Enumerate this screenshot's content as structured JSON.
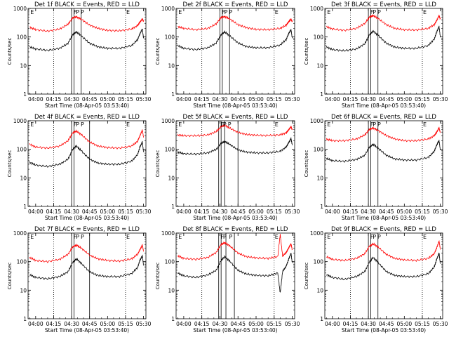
{
  "figure": {
    "background": "#ffffff",
    "colors": {
      "events": "#000000",
      "lld": "#ff0000",
      "axes": "#000000"
    },
    "ylabel": "Counts/sec",
    "xlabel": "Start Time (08-Apr-05 03:53:40)",
    "y_ticks": [
      "1",
      "10",
      "100",
      "1000"
    ],
    "x_ticks": [
      "04:00",
      "04:15",
      "04:30",
      "04:45",
      "05:00",
      "05:15",
      "05:30"
    ]
  },
  "chart_data": [
    {
      "type": "line",
      "title": "Det 1f BLACK = Events, RED = LLD",
      "xlabel": "Start Time (08-Apr-05 03:53:40)",
      "ylabel": "Counts/sec",
      "xlim": [
        "03:53:40",
        "05:32:00"
      ],
      "ylim": [
        1,
        1000
      ],
      "yscale": "log",
      "xticks": [
        "04:00",
        "04:15",
        "04:30",
        "04:45",
        "05:00",
        "05:15",
        "05:30"
      ],
      "yticks": [
        "1",
        "10",
        "100",
        "1000"
      ],
      "x": [
        "03:55",
        "04:00",
        "04:10",
        "04:20",
        "04:27",
        "04:31",
        "04:34",
        "04:38",
        "04:45",
        "04:52",
        "05:00",
        "05:10",
        "05:20",
        "05:25",
        "05:27",
        "05:29",
        "05:30"
      ],
      "series": [
        {
          "color": "#ff0000",
          "values": [
            220,
            180,
            160,
            190,
            280,
            470,
            510,
            420,
            260,
            200,
            170,
            165,
            190,
            250,
            330,
            430,
            350
          ]
        },
        {
          "color": "#000000",
          "values": [
            45,
            38,
            34,
            40,
            60,
            120,
            150,
            110,
            60,
            45,
            40,
            40,
            50,
            80,
            130,
            190,
            90
          ]
        }
      ],
      "vlines_dotted": [
        "04:15",
        "05:15"
      ],
      "vlines_solid": [
        "04:30",
        "04:32",
        "04:38"
      ],
      "markers": {
        "E": [
          "03:55",
          "05:15"
        ],
        "F": [
          "04:31"
        ],
        "P": [
          "04:33",
          "04:37"
        ]
      }
    },
    {
      "type": "line",
      "title": "Det 2f BLACK = Events, RED = LLD",
      "xlabel": "Start Time (08-Apr-05 03:53:40)",
      "ylabel": "Counts/sec",
      "xlim": [
        "03:53:40",
        "05:32:00"
      ],
      "ylim": [
        1,
        1000
      ],
      "yscale": "log",
      "xticks": [
        "04:00",
        "04:15",
        "04:30",
        "04:45",
        "05:00",
        "05:15",
        "05:30"
      ],
      "yticks": [
        "1",
        "10",
        "100",
        "1000"
      ],
      "x": [
        "03:55",
        "04:00",
        "04:10",
        "04:20",
        "04:27",
        "04:31",
        "04:34",
        "04:38",
        "04:45",
        "04:52",
        "05:00",
        "05:10",
        "05:20",
        "05:25",
        "05:27",
        "05:29",
        "05:30"
      ],
      "series": [
        {
          "color": "#ff0000",
          "values": [
            230,
            200,
            180,
            200,
            290,
            480,
            520,
            430,
            270,
            210,
            185,
            180,
            200,
            260,
            340,
            420,
            340
          ]
        },
        {
          "color": "#000000",
          "values": [
            50,
            40,
            36,
            42,
            62,
            120,
            150,
            110,
            62,
            46,
            42,
            42,
            52,
            82,
            130,
            180,
            90
          ]
        }
      ],
      "vlines_dotted": [
        "04:15",
        "05:15"
      ],
      "vlines_solid": [
        "04:30",
        "04:32",
        "04:38"
      ],
      "markers": {
        "E": [
          "03:55",
          "05:15"
        ],
        "F": [
          "04:31"
        ],
        "P": [
          "04:33",
          "04:37"
        ]
      }
    },
    {
      "type": "line",
      "title": "Det 3f BLACK = Events, RED = LLD",
      "xlabel": "Start Time (08-Apr-05 03:53:40)",
      "ylabel": "Counts/sec",
      "xlim": [
        "03:53:40",
        "05:32:00"
      ],
      "ylim": [
        1,
        1000
      ],
      "yscale": "log",
      "xticks": [
        "04:00",
        "04:15",
        "04:30",
        "04:45",
        "05:00",
        "05:15",
        "05:30"
      ],
      "yticks": [
        "1",
        "10",
        "100",
        "1000"
      ],
      "x": [
        "03:55",
        "04:00",
        "04:10",
        "04:20",
        "04:27",
        "04:31",
        "04:34",
        "04:38",
        "04:45",
        "04:52",
        "05:00",
        "05:10",
        "05:20",
        "05:25",
        "05:27",
        "05:29",
        "05:30"
      ],
      "series": [
        {
          "color": "#ff0000",
          "values": [
            230,
            190,
            170,
            200,
            300,
            500,
            560,
            450,
            270,
            200,
            180,
            175,
            200,
            270,
            380,
            560,
            420
          ]
        },
        {
          "color": "#000000",
          "values": [
            45,
            36,
            33,
            38,
            58,
            120,
            160,
            115,
            60,
            44,
            40,
            40,
            50,
            85,
            150,
            230,
            100
          ]
        }
      ],
      "vlines_dotted": [
        "04:15",
        "05:15"
      ],
      "vlines_solid": [
        "04:30",
        "04:32",
        "04:38"
      ],
      "markers": {
        "E": [
          "03:55",
          "05:15"
        ],
        "F": [
          "04:31"
        ],
        "P": [
          "04:33",
          "04:37"
        ]
      }
    },
    {
      "type": "line",
      "title": "Det 4f BLACK = Events, RED = LLD",
      "xlabel": "Start Time (08-Apr-05 03:53:40)",
      "ylabel": "Counts/sec",
      "xlim": [
        "03:53:40",
        "05:32:00"
      ],
      "ylim": [
        1,
        1000
      ],
      "yscale": "log",
      "xticks": [
        "04:00",
        "04:15",
        "04:30",
        "04:45",
        "05:00",
        "05:15",
        "05:30"
      ],
      "yticks": [
        "1",
        "10",
        "100",
        "1000"
      ],
      "x": [
        "03:55",
        "04:00",
        "04:10",
        "04:20",
        "04:27",
        "04:31",
        "04:34",
        "04:38",
        "04:45",
        "04:52",
        "05:00",
        "05:10",
        "05:20",
        "05:25",
        "05:27",
        "05:29",
        "05:30"
      ],
      "series": [
        {
          "color": "#ff0000",
          "values": [
            150,
            120,
            110,
            130,
            200,
            380,
            430,
            330,
            180,
            130,
            115,
            110,
            130,
            190,
            300,
            470,
            260
          ]
        },
        {
          "color": "#000000",
          "values": [
            35,
            28,
            25,
            30,
            45,
            100,
            130,
            90,
            45,
            33,
            30,
            30,
            38,
            65,
            120,
            180,
            80
          ]
        }
      ],
      "vlines_dotted": [
        "04:15",
        "05:15"
      ],
      "vlines_solid": [
        "04:30",
        "04:32",
        "04:45"
      ],
      "markers": {
        "E": [
          "03:55",
          "05:15"
        ],
        "F": [
          "04:31"
        ],
        "P": [
          "04:33",
          "04:37"
        ]
      }
    },
    {
      "type": "line",
      "title": "Det 5f BLACK = Events, RED = LLD",
      "xlabel": "Start Time (08-Apr-05 03:53:40)",
      "ylabel": "Counts/sec",
      "xlim": [
        "03:53:40",
        "05:32:00"
      ],
      "ylim": [
        1,
        1000
      ],
      "yscale": "log",
      "xticks": [
        "04:00",
        "04:15",
        "04:30",
        "04:45",
        "05:00",
        "05:15",
        "05:30"
      ],
      "yticks": [
        "1",
        "10",
        "100",
        "1000"
      ],
      "x": [
        "03:55",
        "04:00",
        "04:10",
        "04:20",
        "04:27",
        "04:31",
        "04:34",
        "04:38",
        "04:45",
        "04:52",
        "05:00",
        "05:10",
        "05:20",
        "05:25",
        "05:27",
        "05:29",
        "05:30"
      ],
      "series": [
        {
          "color": "#ff0000",
          "values": [
            320,
            300,
            300,
            320,
            420,
            620,
            700,
            560,
            390,
            330,
            310,
            305,
            320,
            380,
            480,
            620,
            480
          ]
        },
        {
          "color": "#000000",
          "values": [
            80,
            70,
            68,
            75,
            100,
            160,
            190,
            150,
            95,
            80,
            75,
            75,
            85,
            120,
            170,
            240,
            140
          ]
        }
      ],
      "vlines_dotted": [
        "04:15",
        "05:15"
      ],
      "vlines_solid": [
        "04:29",
        "04:31",
        "04:34",
        "04:45"
      ],
      "markers": {
        "E": [
          "03:55",
          "05:15"
        ],
        "F": [
          "04:30"
        ],
        "P": [
          "04:32",
          "04:36"
        ]
      }
    },
    {
      "type": "line",
      "title": "Det 6f BLACK = Events, RED = LLD",
      "xlabel": "Start Time (08-Apr-05 03:53:40)",
      "ylabel": "Counts/sec",
      "xlim": [
        "03:53:40",
        "05:32:00"
      ],
      "ylim": [
        1,
        1000
      ],
      "yscale": "log",
      "xticks": [
        "04:00",
        "04:15",
        "04:30",
        "04:45",
        "05:00",
        "05:15",
        "05:30"
      ],
      "yticks": [
        "1",
        "10",
        "100",
        "1000"
      ],
      "x": [
        "03:55",
        "04:00",
        "04:10",
        "04:20",
        "04:27",
        "04:31",
        "04:34",
        "04:38",
        "04:45",
        "04:52",
        "05:00",
        "05:10",
        "05:20",
        "05:25",
        "05:27",
        "05:29",
        "05:30"
      ],
      "series": [
        {
          "color": "#ff0000",
          "values": [
            230,
            200,
            200,
            230,
            320,
            500,
            560,
            460,
            300,
            230,
            200,
            200,
            230,
            300,
            400,
            560,
            380
          ]
        },
        {
          "color": "#000000",
          "values": [
            48,
            40,
            38,
            44,
            62,
            120,
            150,
            110,
            62,
            46,
            42,
            42,
            52,
            85,
            140,
            200,
            95
          ]
        }
      ],
      "vlines_dotted": [
        "04:15",
        "05:15"
      ],
      "vlines_solid": [
        "04:30",
        "04:32",
        "04:38"
      ],
      "markers": {
        "E": [
          "03:55",
          "05:15"
        ],
        "F": [
          "04:31"
        ],
        "P": [
          "04:33",
          "04:37"
        ]
      }
    },
    {
      "type": "line",
      "title": "Det 7f BLACK = Events, RED = LLD",
      "xlabel": "Start Time (08-Apr-05 03:53:40)",
      "ylabel": "Counts/sec",
      "xlim": [
        "03:53:40",
        "05:32:00"
      ],
      "ylim": [
        1,
        1000
      ],
      "yscale": "log",
      "xticks": [
        "04:00",
        "04:15",
        "04:30",
        "04:45",
        "05:00",
        "05:15",
        "05:30"
      ],
      "yticks": [
        "1",
        "10",
        "100",
        "1000"
      ],
      "x": [
        "03:55",
        "04:00",
        "04:10",
        "04:20",
        "04:27",
        "04:31",
        "04:34",
        "04:38",
        "04:45",
        "04:52",
        "05:00",
        "05:10",
        "05:20",
        "05:25",
        "05:27",
        "05:29",
        "05:30"
      ],
      "series": [
        {
          "color": "#ff0000",
          "values": [
            140,
            110,
            100,
            120,
            180,
            330,
            380,
            300,
            170,
            125,
            110,
            105,
            125,
            180,
            260,
            380,
            230
          ]
        },
        {
          "color": "#000000",
          "values": [
            35,
            28,
            25,
            30,
            44,
            95,
            125,
            88,
            44,
            33,
            30,
            30,
            38,
            62,
            110,
            160,
            75
          ]
        }
      ],
      "vlines_dotted": [
        "04:15",
        "05:15"
      ],
      "vlines_solid": [
        "04:30",
        "04:32",
        "04:45"
      ],
      "markers": {
        "E": [
          "03:55",
          "05:15"
        ],
        "F": [
          "04:31"
        ],
        "P": [
          "04:33",
          "04:37"
        ]
      }
    },
    {
      "type": "line",
      "title": "Det 8f BLACK = Events, RED = LLD",
      "xlabel": "Start Time (08-Apr-05 03:53:40)",
      "ylabel": "Counts/sec",
      "xlim": [
        "03:53:40",
        "05:32:00"
      ],
      "ylim": [
        1,
        1000
      ],
      "yscale": "log",
      "xticks": [
        "04:00",
        "04:15",
        "04:30",
        "04:45",
        "05:00",
        "05:15",
        "05:30"
      ],
      "yticks": [
        "1",
        "10",
        "100",
        "1000"
      ],
      "x": [
        "03:55",
        "04:00",
        "04:10",
        "04:20",
        "04:27",
        "04:31",
        "04:34",
        "04:38",
        "04:45",
        "04:52",
        "05:00",
        "05:10",
        "05:18",
        "05:20",
        "05:22",
        "05:25",
        "05:27",
        "05:29",
        "05:30"
      ],
      "series": [
        {
          "color": "#ff0000",
          "values": [
            160,
            130,
            120,
            140,
            210,
            400,
            460,
            360,
            200,
            150,
            135,
            130,
            150,
            900,
            160,
            210,
            300,
            420,
            260
          ]
        },
        {
          "color": "#000000",
          "values": [
            40,
            32,
            28,
            34,
            50,
            110,
            150,
            105,
            50,
            37,
            33,
            32,
            40,
            8,
            45,
            70,
            120,
            200,
            90
          ]
        }
      ],
      "vlines_dotted": [
        "04:15",
        "05:15"
      ],
      "vlines_solid": [
        "04:29",
        "04:31",
        "04:35",
        "04:42"
      ],
      "markers": {
        "E": [
          "03:55",
          "05:15"
        ],
        "F": [
          "04:30"
        ],
        "P": [
          "04:32",
          "04:37"
        ]
      }
    },
    {
      "type": "line",
      "title": "Det 9f BLACK = Events, RED = LLD",
      "xlabel": "Start Time (08-Apr-05 03:53:40)",
      "ylabel": "Counts/sec",
      "xlim": [
        "03:53:40",
        "05:32:00"
      ],
      "ylim": [
        1,
        1000
      ],
      "yscale": "log",
      "xticks": [
        "04:00",
        "04:15",
        "04:30",
        "04:45",
        "05:00",
        "05:15",
        "05:30"
      ],
      "yticks": [
        "1",
        "10",
        "100",
        "1000"
      ],
      "x": [
        "03:55",
        "04:00",
        "04:10",
        "04:20",
        "04:27",
        "04:31",
        "04:34",
        "04:38",
        "04:45",
        "04:52",
        "05:00",
        "05:10",
        "05:20",
        "05:25",
        "05:27",
        "05:29",
        "05:30"
      ],
      "series": [
        {
          "color": "#ff0000",
          "values": [
            150,
            120,
            110,
            130,
            190,
            350,
            420,
            330,
            180,
            130,
            115,
            110,
            130,
            190,
            300,
            520,
            280
          ]
        },
        {
          "color": "#000000",
          "values": [
            35,
            28,
            24,
            30,
            45,
            100,
            140,
            95,
            45,
            33,
            30,
            30,
            38,
            65,
            120,
            200,
            85
          ]
        }
      ],
      "vlines_dotted": [
        "04:15",
        "05:15"
      ],
      "vlines_solid": [
        "04:30",
        "04:32",
        "04:38"
      ],
      "markers": {
        "E": [
          "03:55",
          "05:15"
        ],
        "F": [
          "04:31"
        ],
        "P": [
          "04:33",
          "04:37"
        ]
      }
    }
  ]
}
